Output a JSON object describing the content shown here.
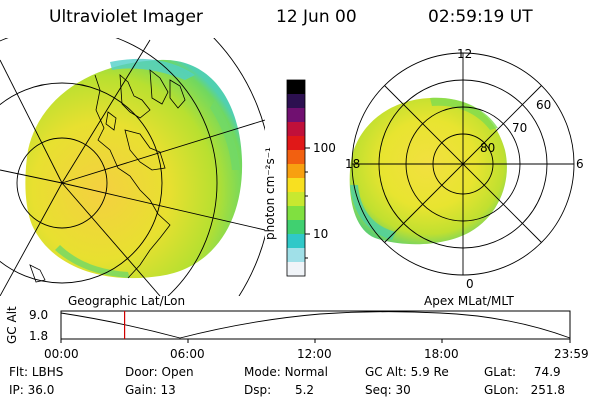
{
  "header": {
    "title": "Ultraviolet Imager",
    "date": "12 Jun 00",
    "time": "02:59:19 UT"
  },
  "left_panel": {
    "caption": "Geographic Lat/Lon"
  },
  "right_panel": {
    "caption": "Apex MLat/MLT",
    "mlt_labels": {
      "top": "12",
      "left": "18",
      "right": "6",
      "bottom": "0"
    },
    "lat_labels": [
      "60",
      "70",
      "80"
    ]
  },
  "colorbar": {
    "unit_label": "photon cm⁻²s⁻¹",
    "tick_100": "100",
    "tick_10": "10",
    "colors": [
      "#000000",
      "#2c1050",
      "#701070",
      "#c0103a",
      "#e01818",
      "#f26010",
      "#f8a010",
      "#f8e020",
      "#c8e830",
      "#80e040",
      "#40d070",
      "#30c8c8",
      "#a0e0e8",
      "#f0f4f8"
    ]
  },
  "timeline": {
    "axis_label": "GC Alt",
    "y_top": "9.0",
    "y_bottom": "1.8",
    "ticks": [
      "00:00",
      "06:00",
      "12:00",
      "18:00",
      "23:59"
    ],
    "marker_fraction": 0.125
  },
  "info": {
    "row1": [
      {
        "label": "Flt:",
        "value": "LBHS"
      },
      {
        "label": "Door:",
        "value": "Open"
      },
      {
        "label": "Mode:",
        "value": "Normal"
      },
      {
        "label": "GC Alt:",
        "value": "5.9 Re"
      },
      {
        "label": "GLat:",
        "value": "74.9"
      }
    ],
    "row2": [
      {
        "label": "IP:",
        "value": "36.0"
      },
      {
        "label": "Gain:",
        "value": "13"
      },
      {
        "label": "Dsp:",
        "value": "5.2"
      },
      {
        "label": "Seq:",
        "value": "30"
      },
      {
        "label": "GLon:",
        "value": "251.8"
      }
    ]
  }
}
